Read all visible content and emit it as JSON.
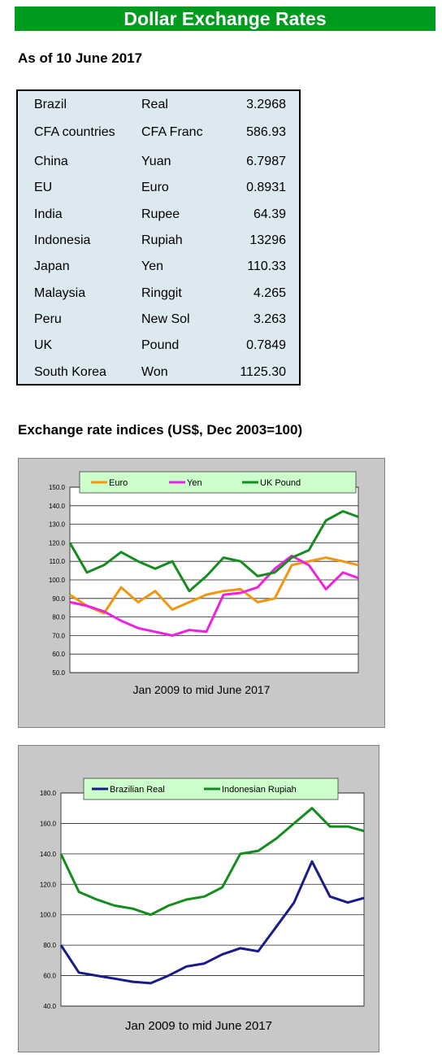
{
  "header": {
    "title": "Dollar Exchange Rates",
    "as_of": "As of 10 June 2017",
    "indices_title": "Exchange rate indices (US$, Dec 2003=100)"
  },
  "rates": [
    {
      "country": "Brazil",
      "currency": "Real",
      "rate": "3.2968"
    },
    {
      "country": "CFA countries",
      "currency": "CFA Franc",
      "rate": "586.93"
    },
    {
      "country": "China",
      "currency": "Yuan",
      "rate": "6.7987"
    },
    {
      "country": "EU",
      "currency": "Euro",
      "rate": "0.8931"
    },
    {
      "country": "India",
      "currency": "Rupee",
      "rate": "64.39"
    },
    {
      "country": "Indonesia",
      "currency": "Rupiah",
      "rate": "13296"
    },
    {
      "country": "Japan",
      "currency": "Yen",
      "rate": "110.33"
    },
    {
      "country": "Malaysia",
      "currency": "Ringgit",
      "rate": "4.265"
    },
    {
      "country": "Peru",
      "currency": "New Sol",
      "rate": "3.263"
    },
    {
      "country": "UK",
      "currency": "Pound",
      "rate": "0.7849"
    },
    {
      "country": "South Korea",
      "currency": "Won",
      "rate": "1125.30"
    }
  ],
  "chart_data": [
    {
      "type": "line",
      "title": "",
      "xlabel": "Jan 2009  to mid June 2017",
      "ylabel": "",
      "ylim": [
        50,
        150
      ],
      "yticks": [
        "150.0",
        "140.0",
        "130.0",
        "120.0",
        "110.0",
        "100.0",
        "90.0",
        "80.0",
        "70.0",
        "60.0",
        "50.0"
      ],
      "grid": true,
      "legend_position": "top",
      "x": [
        2009.0,
        2009.5,
        2010.0,
        2010.5,
        2011.0,
        2011.5,
        2012.0,
        2012.5,
        2013.0,
        2013.5,
        2014.0,
        2014.5,
        2015.0,
        2015.5,
        2016.0,
        2016.5,
        2017.0,
        2017.45
      ],
      "series": [
        {
          "name": "Euro",
          "color": "#f0960f",
          "values": [
            92,
            86,
            82,
            96,
            88,
            94,
            84,
            88,
            92,
            94,
            95,
            88,
            90,
            108,
            110,
            112,
            110,
            108
          ]
        },
        {
          "name": "Yen",
          "color": "#ee22dd",
          "values": [
            88,
            86,
            83,
            78,
            74,
            72,
            70,
            73,
            72,
            92,
            93,
            96,
            106,
            113,
            108,
            95,
            104,
            101
          ]
        },
        {
          "name": "UK Pound",
          "color": "#148c1e",
          "values": [
            120,
            104,
            108,
            115,
            110,
            106,
            110,
            94,
            102,
            112,
            110,
            102,
            104,
            112,
            116,
            132,
            137,
            134
          ]
        }
      ]
    },
    {
      "type": "line",
      "title": "",
      "xlabel": "Jan 2009 to mid June 2017",
      "ylabel": "",
      "ylim": [
        40,
        180
      ],
      "yticks": [
        "180.0",
        "160.0",
        "140.0",
        "120.0",
        "100.0",
        "80.0",
        "60.0",
        "40.0"
      ],
      "grid": true,
      "legend_position": "top",
      "x": [
        2009.0,
        2009.5,
        2010.0,
        2010.5,
        2011.0,
        2011.5,
        2012.0,
        2012.5,
        2013.0,
        2013.5,
        2014.0,
        2014.5,
        2015.0,
        2015.5,
        2016.0,
        2016.5,
        2017.0,
        2017.45
      ],
      "series": [
        {
          "name": "Brazilian Real",
          "color": "#1a1a8a",
          "values": [
            80,
            62,
            60,
            58,
            56,
            55,
            60,
            66,
            68,
            74,
            78,
            76,
            92,
            108,
            135,
            112,
            108,
            111
          ]
        },
        {
          "name": "Indonesian Rupiah",
          "color": "#148c1e",
          "values": [
            140,
            115,
            110,
            106,
            104,
            100,
            106,
            110,
            112,
            118,
            140,
            142,
            150,
            160,
            170,
            158,
            158,
            155
          ]
        }
      ]
    }
  ]
}
